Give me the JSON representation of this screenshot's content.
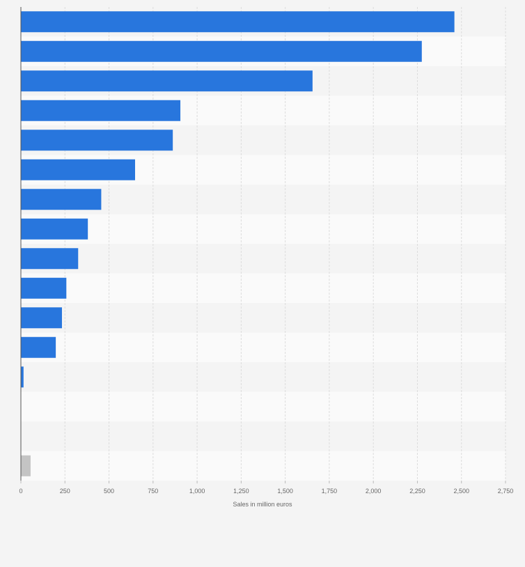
{
  "chart_data": {
    "type": "bar",
    "orientation": "horizontal",
    "categories": [
      "",
      "",
      "",
      "",
      "",
      "",
      "",
      "",
      "",
      "",
      "",
      "",
      "",
      "",
      "",
      ""
    ],
    "values": [
      2460,
      2275,
      1655,
      905,
      862,
      648,
      456,
      380,
      325,
      258,
      233,
      198,
      15,
      0,
      0,
      55
    ],
    "bar_colors": [
      "#2876dd",
      "#2876dd",
      "#2876dd",
      "#2876dd",
      "#2876dd",
      "#2876dd",
      "#2876dd",
      "#2876dd",
      "#2876dd",
      "#2876dd",
      "#2876dd",
      "#2876dd",
      "#2876dd",
      "#2876dd",
      "#2876dd",
      "#c4c4c4"
    ],
    "xlabel": "Sales in million euros",
    "xlim": [
      0,
      2750
    ],
    "xticks": [
      0,
      250,
      500,
      750,
      1000,
      1250,
      1500,
      1750,
      2000,
      2250,
      2500,
      2750
    ],
    "xtick_labels": [
      "0",
      "250",
      "500",
      "750",
      "1,000",
      "1,250",
      "1,500",
      "1,750",
      "2,000",
      "2,250",
      "2,500",
      "2,750"
    ],
    "grid": true,
    "colors": {
      "bar": "#2876dd",
      "other_bar": "#c4c4c4",
      "background": "#f4f4f4",
      "row_light": "#fafafa",
      "row_dark": "#f4f4f4",
      "grid": "#dcdcdc",
      "axis": "#555555",
      "text": "#666666"
    }
  }
}
